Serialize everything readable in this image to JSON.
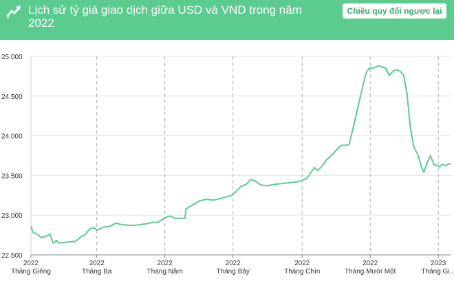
{
  "header": {
    "title": "Lịch sử tỷ giá giao dịch giữa USD và VND trong năm 2022",
    "swap_button_label": "Chiều quy đổi ngược lại",
    "icon": "trending-up-icon"
  },
  "colors": {
    "header_bg": "#5ccb8f",
    "line": "#5ccb8f",
    "grid": "#e6e6e6",
    "vgrid": "#aaaaaa",
    "axis_text": "#333333"
  },
  "chart_data": {
    "type": "line",
    "title": "Lịch sử tỷ giá giao dịch giữa USD và VND trong năm 2022",
    "xlabel": "",
    "ylabel": "",
    "x_start": "2022-01-01",
    "x_end": "2023-01-12",
    "ylim": [
      22500,
      25000
    ],
    "yticks": [
      22500,
      23000,
      23500,
      24000,
      24500,
      25000
    ],
    "ytick_labels": [
      "22.500",
      "23.000",
      "23.500",
      "24.000",
      "24.500",
      "25.000"
    ],
    "xticks": [
      {
        "date": "2022-01-01",
        "year": "2022",
        "label": "Tháng Giêng"
      },
      {
        "date": "2022-03-01",
        "year": "2022",
        "label": "Tháng Ba"
      },
      {
        "date": "2022-05-01",
        "year": "2022",
        "label": "Tháng Năm"
      },
      {
        "date": "2022-07-01",
        "year": "2022",
        "label": "Tháng Bảy"
      },
      {
        "date": "2022-09-01",
        "year": "2022",
        "label": "Tháng Chín"
      },
      {
        "date": "2022-11-01",
        "year": "2022",
        "label": "Tháng Mười Một"
      },
      {
        "date": "2023-01-01",
        "year": "2023",
        "label": "Tháng Gi..."
      }
    ],
    "grid": true,
    "series": [
      {
        "values": [
          [
            "2022-01-01",
            22860
          ],
          [
            "2022-01-03",
            22780
          ],
          [
            "2022-01-07",
            22760
          ],
          [
            "2022-01-10",
            22720
          ],
          [
            "2022-01-14",
            22730
          ],
          [
            "2022-01-18",
            22760
          ],
          [
            "2022-01-21",
            22650
          ],
          [
            "2022-01-24",
            22680
          ],
          [
            "2022-01-26",
            22650
          ],
          [
            "2022-02-02",
            22660
          ],
          [
            "2022-02-10",
            22670
          ],
          [
            "2022-02-14",
            22720
          ],
          [
            "2022-02-18",
            22750
          ],
          [
            "2022-02-23",
            22830
          ],
          [
            "2022-02-27",
            22840
          ],
          [
            "2022-03-01",
            22810
          ],
          [
            "2022-03-07",
            22850
          ],
          [
            "2022-03-13",
            22860
          ],
          [
            "2022-03-18",
            22900
          ],
          [
            "2022-03-24",
            22880
          ],
          [
            "2022-04-01",
            22870
          ],
          [
            "2022-04-08",
            22880
          ],
          [
            "2022-04-14",
            22890
          ],
          [
            "2022-04-20",
            22910
          ],
          [
            "2022-04-25",
            22910
          ],
          [
            "2022-05-01",
            22970
          ],
          [
            "2022-05-06",
            22990
          ],
          [
            "2022-05-10",
            22960
          ],
          [
            "2022-05-16",
            22960
          ],
          [
            "2022-05-19",
            22960
          ],
          [
            "2022-05-20",
            23080
          ],
          [
            "2022-05-25",
            23120
          ],
          [
            "2022-06-01",
            23180
          ],
          [
            "2022-06-07",
            23200
          ],
          [
            "2022-06-14",
            23190
          ],
          [
            "2022-06-20",
            23210
          ],
          [
            "2022-06-25",
            23230
          ],
          [
            "2022-06-30",
            23250
          ],
          [
            "2022-07-04",
            23300
          ],
          [
            "2022-07-08",
            23360
          ],
          [
            "2022-07-13",
            23390
          ],
          [
            "2022-07-17",
            23450
          ],
          [
            "2022-07-21",
            23430
          ],
          [
            "2022-07-26",
            23380
          ],
          [
            "2022-08-01",
            23370
          ],
          [
            "2022-08-08",
            23390
          ],
          [
            "2022-08-15",
            23400
          ],
          [
            "2022-08-22",
            23410
          ],
          [
            "2022-08-28",
            23420
          ],
          [
            "2022-09-01",
            23440
          ],
          [
            "2022-09-05",
            23460
          ],
          [
            "2022-09-08",
            23520
          ],
          [
            "2022-09-12",
            23600
          ],
          [
            "2022-09-15",
            23560
          ],
          [
            "2022-09-19",
            23620
          ],
          [
            "2022-09-23",
            23700
          ],
          [
            "2022-09-28",
            23760
          ],
          [
            "2022-10-03",
            23840
          ],
          [
            "2022-10-06",
            23880
          ],
          [
            "2022-10-10",
            23880
          ],
          [
            "2022-10-13",
            23890
          ],
          [
            "2022-10-15",
            24000
          ],
          [
            "2022-10-18",
            24180
          ],
          [
            "2022-10-21",
            24360
          ],
          [
            "2022-10-25",
            24600
          ],
          [
            "2022-10-28",
            24780
          ],
          [
            "2022-10-31",
            24850
          ],
          [
            "2022-11-04",
            24850
          ],
          [
            "2022-11-08",
            24880
          ],
          [
            "2022-11-11",
            24870
          ],
          [
            "2022-11-15",
            24850
          ],
          [
            "2022-11-18",
            24760
          ],
          [
            "2022-11-22",
            24820
          ],
          [
            "2022-11-25",
            24830
          ],
          [
            "2022-11-28",
            24810
          ],
          [
            "2022-12-01",
            24760
          ],
          [
            "2022-12-04",
            24530
          ],
          [
            "2022-12-07",
            24100
          ],
          [
            "2022-12-10",
            23860
          ],
          [
            "2022-12-14",
            23750
          ],
          [
            "2022-12-17",
            23600
          ],
          [
            "2022-12-19",
            23540
          ],
          [
            "2022-12-22",
            23660
          ],
          [
            "2022-12-25",
            23750
          ],
          [
            "2022-12-28",
            23640
          ],
          [
            "2023-01-02",
            23610
          ],
          [
            "2023-01-05",
            23640
          ],
          [
            "2023-01-08",
            23620
          ],
          [
            "2023-01-10",
            23650
          ],
          [
            "2023-01-12",
            23640
          ]
        ]
      }
    ]
  }
}
